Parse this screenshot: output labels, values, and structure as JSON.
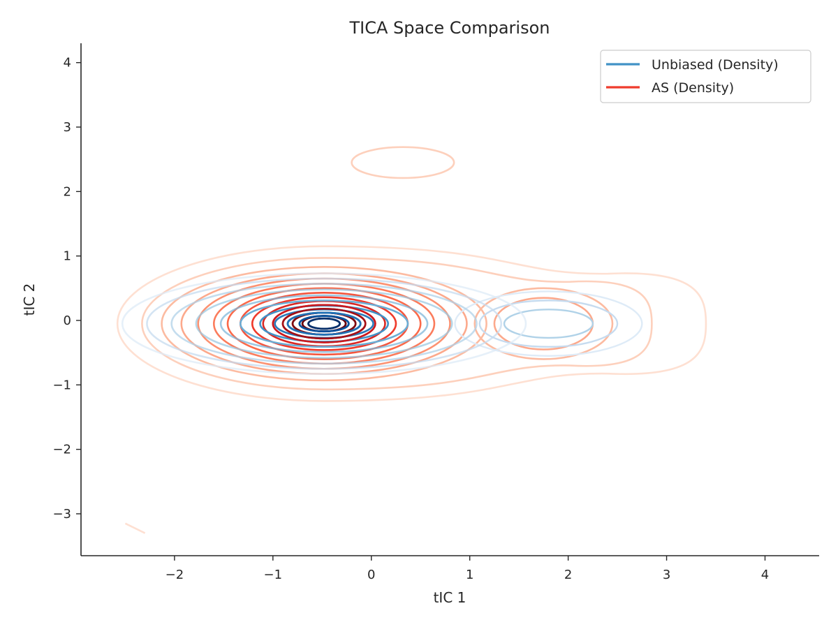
{
  "chart_data": {
    "type": "contour",
    "title": "TICA Space Comparison",
    "xlabel": "tIC 1",
    "ylabel": "tIC 2",
    "xlim": [
      -2.95,
      4.55
    ],
    "ylim": [
      -3.65,
      4.3
    ],
    "xticks": [
      -2,
      -1,
      0,
      1,
      2,
      3,
      4
    ],
    "yticks": [
      -3,
      -2,
      -1,
      0,
      1,
      2,
      3,
      4
    ],
    "xtick_labels": [
      "−2",
      "−1",
      "0",
      "1",
      "2",
      "3",
      "4"
    ],
    "ytick_labels": [
      "−3",
      "−2",
      "−1",
      "0",
      "1",
      "2",
      "3",
      "4"
    ],
    "legend_position": "top-right",
    "grid": false,
    "series": [
      {
        "name": "Unbiased (Density)",
        "legend_color": "#4292c6",
        "center": [
          -0.48,
          -0.05
        ],
        "levels": [
          {
            "rx": 2.05,
            "ry": 0.78,
            "color": "#deebf7"
          },
          {
            "rx": 1.8,
            "ry": 0.7,
            "color": "#c6dbef"
          },
          {
            "rx": 1.55,
            "ry": 0.62,
            "color": "#b0d2e8"
          },
          {
            "rx": 1.3,
            "ry": 0.53,
            "color": "#9ecae1"
          },
          {
            "rx": 1.05,
            "ry": 0.44,
            "color": "#7fb7da"
          },
          {
            "rx": 0.85,
            "ry": 0.36,
            "color": "#6baed6"
          },
          {
            "rx": 0.65,
            "ry": 0.28,
            "color": "#4292c6"
          },
          {
            "rx": 0.5,
            "ry": 0.22,
            "color": "#2b7bba"
          },
          {
            "rx": 0.37,
            "ry": 0.17,
            "color": "#2171b5"
          },
          {
            "rx": 0.25,
            "ry": 0.12,
            "color": "#08519c"
          },
          {
            "rx": 0.16,
            "ry": 0.08,
            "color": "#08306b"
          }
        ],
        "secondary_center": [
          1.8,
          -0.05
        ],
        "secondary_levels": [
          {
            "rx": 0.95,
            "ry": 0.5,
            "color": "#deebf7"
          },
          {
            "rx": 0.7,
            "ry": 0.36,
            "color": "#c6dbef"
          },
          {
            "rx": 0.45,
            "ry": 0.22,
            "color": "#b0d2e8"
          }
        ]
      },
      {
        "name": "AS (Density)",
        "legend_color": "#ef3b2c",
        "center": [
          -0.48,
          -0.05
        ],
        "levels": [
          {
            "rx": 2.1,
            "ry": 1.2,
            "color": "#fee0d2"
          },
          {
            "rx": 1.85,
            "ry": 1.02,
            "color": "#fdd0bc"
          },
          {
            "rx": 1.65,
            "ry": 0.88,
            "color": "#fcbba1"
          },
          {
            "rx": 1.45,
            "ry": 0.78,
            "color": "#fca98c"
          },
          {
            "rx": 1.28,
            "ry": 0.7,
            "color": "#fc9272"
          },
          {
            "rx": 1.12,
            "ry": 0.62,
            "color": "#fb7c5c"
          },
          {
            "rx": 0.98,
            "ry": 0.55,
            "color": "#fb6a4a"
          },
          {
            "rx": 0.85,
            "ry": 0.48,
            "color": "#f4563e"
          },
          {
            "rx": 0.73,
            "ry": 0.41,
            "color": "#ef3b2c"
          },
          {
            "rx": 0.62,
            "ry": 0.35,
            "color": "#d92723"
          },
          {
            "rx": 0.52,
            "ry": 0.29,
            "color": "#cb181d"
          },
          {
            "rx": 0.42,
            "ry": 0.23,
            "color": "#a50f15"
          },
          {
            "rx": 0.32,
            "ry": 0.17,
            "color": "#800c12"
          },
          {
            "rx": 0.22,
            "ry": 0.12,
            "color": "#67000d"
          }
        ],
        "outer_right_extent": [
          3.4,
          2.85
        ],
        "secondary_center": [
          1.75,
          -0.05
        ],
        "secondary_levels": [
          {
            "rx": 0.7,
            "ry": 0.55,
            "color": "#fcbba1"
          },
          {
            "rx": 0.5,
            "ry": 0.4,
            "color": "#fca98c"
          }
        ],
        "island_center": [
          0.32,
          2.45
        ],
        "island_size": [
          0.52,
          0.24
        ],
        "island_color": "#fdd0bc",
        "stray_segment": [
          [
            -2.5,
            -3.15
          ],
          [
            -2.3,
            -3.3
          ]
        ],
        "stray_color": "#fee0d2"
      }
    ]
  }
}
